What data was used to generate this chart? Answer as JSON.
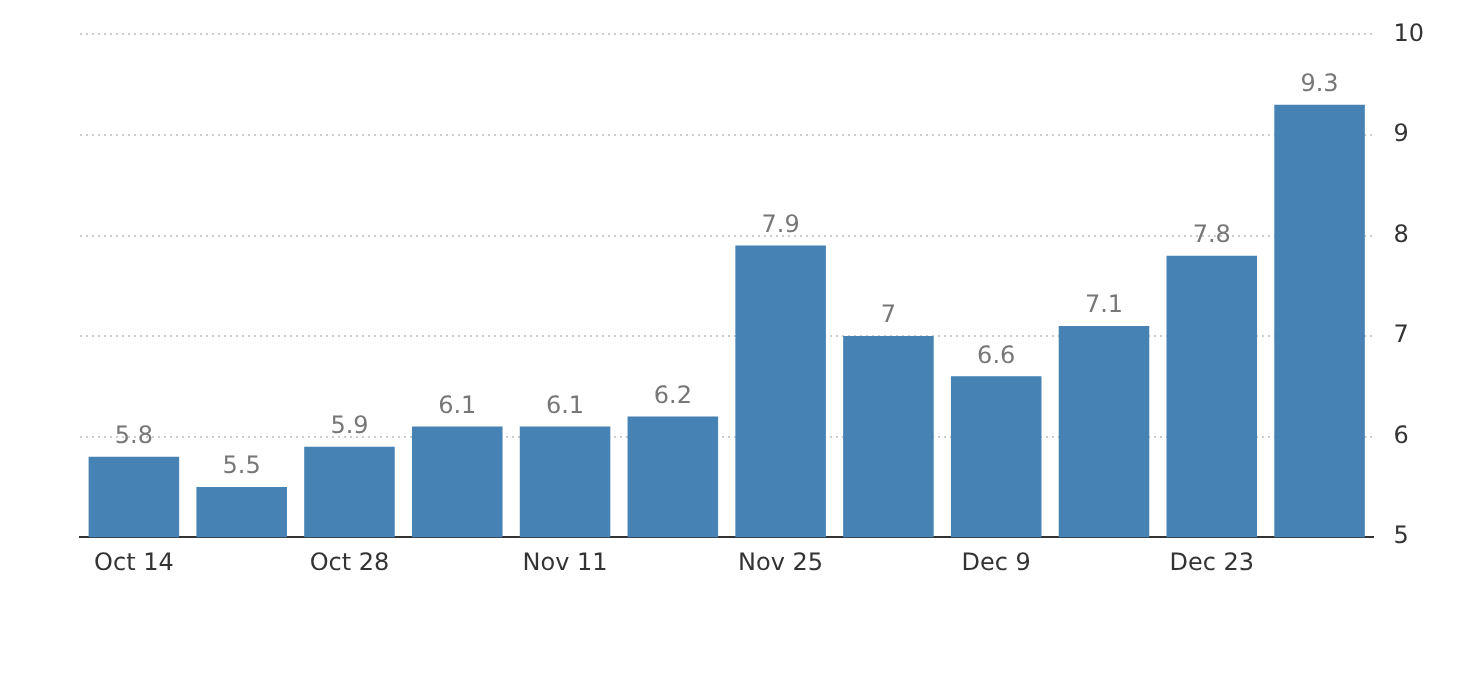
{
  "chart_data": {
    "type": "bar",
    "categories": [
      "Oct 14",
      null,
      "Oct 28",
      null,
      "Nov 11",
      null,
      "Nov 25",
      null,
      "Dec 9",
      null,
      "Dec 23",
      null
    ],
    "values": [
      5.8,
      5.5,
      5.9,
      6.1,
      6.1,
      6.2,
      7.9,
      7,
      6.6,
      7.1,
      7.8,
      9.3
    ],
    "color": "#4682b4",
    "ylim": [
      5,
      10
    ],
    "yticks": [
      5,
      6,
      7,
      8,
      9,
      10
    ],
    "grid": "y",
    "data_labels": true
  }
}
